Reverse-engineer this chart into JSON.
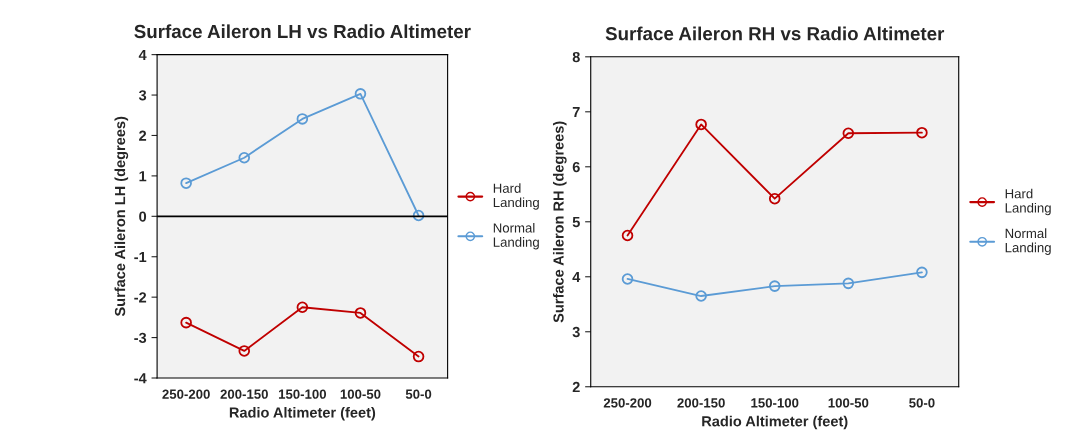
{
  "chart_data": [
    {
      "type": "line",
      "title": "Surface Aileron LH vs Radio Altimeter",
      "xlabel": "Radio Altimeter (feet)",
      "ylabel": "Surface Aileron LH (degrees)",
      "categories": [
        "250-200",
        "200-150",
        "150-100",
        "100-50",
        "50-0"
      ],
      "series": [
        {
          "name": "Hard Landing",
          "color": "#c00000",
          "values": [
            -2.63,
            -3.33,
            -2.25,
            -2.39,
            -3.47
          ]
        },
        {
          "name": "Normal Landing",
          "color": "#5b9bd5",
          "values": [
            0.82,
            1.45,
            2.41,
            3.03,
            0.02
          ]
        }
      ],
      "ylim": [
        -4,
        4
      ],
      "yticks": [
        -4,
        -3,
        -2,
        -1,
        0,
        1,
        2,
        3,
        4
      ],
      "ref_lines": [
        {
          "axis": "y",
          "value": 0,
          "color": "#000000"
        }
      ],
      "grid": false,
      "legend": "right",
      "marker": "circle",
      "line_style": "solid"
    },
    {
      "type": "line",
      "title": "Surface Aileron RH vs Radio Altimeter",
      "xlabel": "Radio Altimeter (feet)",
      "ylabel": "Surface Aileron RH (degrees)",
      "categories": [
        "250-200",
        "200-150",
        "150-100",
        "100-50",
        "50-0"
      ],
      "series": [
        {
          "name": "Hard Landing",
          "color": "#c00000",
          "values": [
            4.75,
            6.77,
            5.42,
            6.61,
            6.62
          ]
        },
        {
          "name": "Normal Landing",
          "color": "#5b9bd5",
          "values": [
            3.96,
            3.65,
            3.83,
            3.88,
            4.08
          ]
        }
      ],
      "ylim": [
        2,
        8
      ],
      "yticks": [
        2,
        3,
        4,
        5,
        6,
        7,
        8
      ],
      "grid": false,
      "legend": "right",
      "marker": "circle",
      "line_style": "solid"
    }
  ]
}
